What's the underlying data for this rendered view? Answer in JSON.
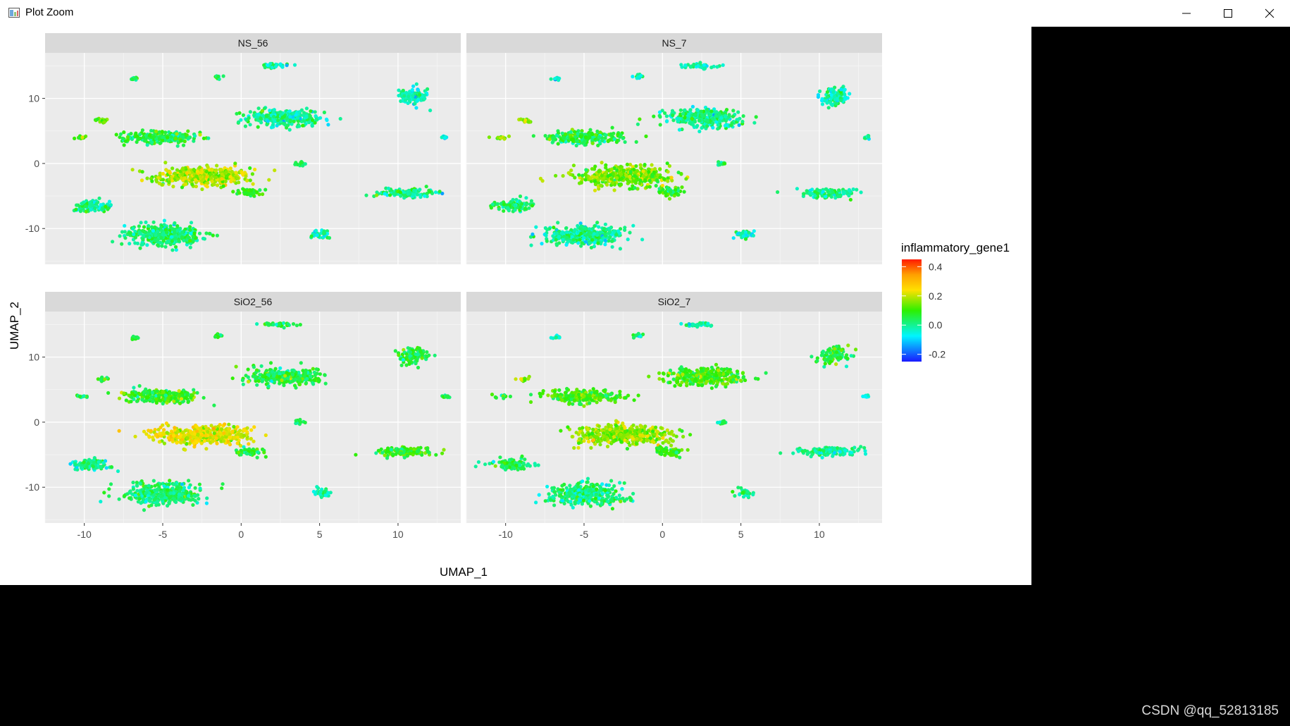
{
  "window": {
    "title": "Plot Zoom",
    "icons": {
      "app": "plot-zoom-app-icon",
      "minimize": "minimize-icon",
      "maximize": "maximize-icon",
      "close": "close-icon"
    }
  },
  "chart_data": {
    "type": "scatter",
    "title": "",
    "xlabel": "UMAP_1",
    "ylabel": "UMAP_2",
    "xlim": [
      -12.5,
      14
    ],
    "ylim": [
      -15.5,
      17
    ],
    "xticks": [
      -10,
      -5,
      0,
      5,
      10
    ],
    "yticks": [
      -10,
      0,
      10
    ],
    "facets": [
      "NS_56",
      "NS_7",
      "SiO2_56",
      "SiO2_7"
    ],
    "legend": {
      "title": "inflammatory_gene1",
      "position": "right",
      "breaks": [
        "0.4",
        "0.2",
        "0.0",
        "-0.2"
      ],
      "break_values": [
        0.4,
        0.2,
        0.0,
        -0.2
      ],
      "limits": [
        -0.25,
        0.45
      ],
      "colors": [
        "#1a1aff",
        "#00f5ff",
        "#2df000",
        "#ffe000",
        "#ffa000",
        "#ff1a00"
      ]
    },
    "clusters": [
      {
        "x": -2.5,
        "y": -2,
        "sx": 2.8,
        "sy": 1.3,
        "v": [
          0.18,
          0.14,
          0.22,
          0.16
        ]
      },
      {
        "x": 2.8,
        "y": 7,
        "sx": 2.2,
        "sy": 1.2,
        "v": [
          0.0,
          0.0,
          0.05,
          0.1
        ]
      },
      {
        "x": -5,
        "y": 4,
        "sx": 2.2,
        "sy": 0.9,
        "v": [
          0.06,
          0.05,
          0.08,
          0.1
        ]
      },
      {
        "x": -10.2,
        "y": 4,
        "sx": 0.5,
        "sy": 0.2,
        "v": [
          0.1,
          0.15,
          0.05,
          0.07
        ]
      },
      {
        "x": -8.8,
        "y": 6.6,
        "sx": 0.4,
        "sy": 0.3,
        "v": [
          0.13,
          0.15,
          0.05,
          0.15
        ]
      },
      {
        "x": -5,
        "y": -11,
        "sx": 2.2,
        "sy": 1.4,
        "v": [
          0.02,
          0.0,
          0.03,
          0.02
        ]
      },
      {
        "x": -9.5,
        "y": -6.5,
        "sx": 1.1,
        "sy": 0.8,
        "v": [
          0.0,
          0.03,
          0.0,
          0.03
        ]
      },
      {
        "x": 0.5,
        "y": -4.5,
        "sx": 0.8,
        "sy": 0.6,
        "v": [
          0.08,
          0.08,
          0.06,
          0.1
        ]
      },
      {
        "x": 5.2,
        "y": -10.8,
        "sx": 0.5,
        "sy": 0.6,
        "v": [
          -0.02,
          -0.02,
          -0.02,
          -0.01
        ]
      },
      {
        "x": 10.5,
        "y": -4.5,
        "sx": 1.8,
        "sy": 0.6,
        "v": [
          0.0,
          0.0,
          0.1,
          0.0
        ]
      },
      {
        "x": 11,
        "y": 10.2,
        "sx": 0.8,
        "sy": 1.2,
        "v": [
          -0.03,
          -0.02,
          0.05,
          0.06
        ]
      },
      {
        "x": -6.8,
        "y": 13,
        "sx": 0.25,
        "sy": 0.25,
        "v": [
          0.05,
          -0.02,
          0.05,
          -0.02
        ]
      },
      {
        "x": -1.5,
        "y": 13.3,
        "sx": 0.3,
        "sy": 0.3,
        "v": [
          0.06,
          -0.02,
          0.06,
          -0.02
        ]
      },
      {
        "x": 2.3,
        "y": 15,
        "sx": 1.0,
        "sy": 0.3,
        "v": [
          -0.02,
          -0.02,
          0.05,
          -0.02
        ]
      },
      {
        "x": 3.8,
        "y": 0,
        "sx": 0.3,
        "sy": 0.3,
        "v": [
          0.03,
          0.02,
          0.05,
          0.03
        ]
      },
      {
        "x": 13,
        "y": 4,
        "sx": 0.2,
        "sy": 0.2,
        "v": [
          -0.05,
          0.0,
          0.05,
          -0.04
        ]
      }
    ]
  },
  "watermark": "CSDN @qq_52813185"
}
